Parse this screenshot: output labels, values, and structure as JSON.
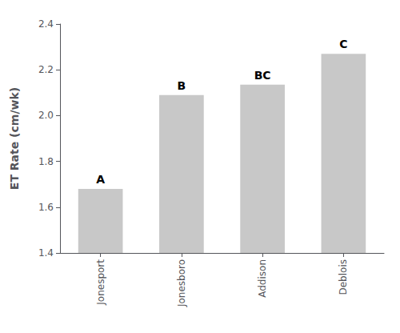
{
  "chart_data": {
    "type": "bar",
    "ylabel": "ET Rate (cm/wk)",
    "categories": [
      "Jonesport",
      "Jonesboro",
      "Addison",
      "Deblois"
    ],
    "values": [
      1.68,
      2.09,
      2.135,
      2.27
    ],
    "annotations": [
      "A",
      "B",
      "BC",
      "C"
    ],
    "color": "#c8c8c8",
    "ylim": [
      1.4,
      2.4
    ],
    "yticks": [
      1.4,
      1.6,
      1.8,
      {
        "value": 2,
        "label": "2.0"
      },
      2.2,
      2.4
    ],
    "grid": false
  }
}
